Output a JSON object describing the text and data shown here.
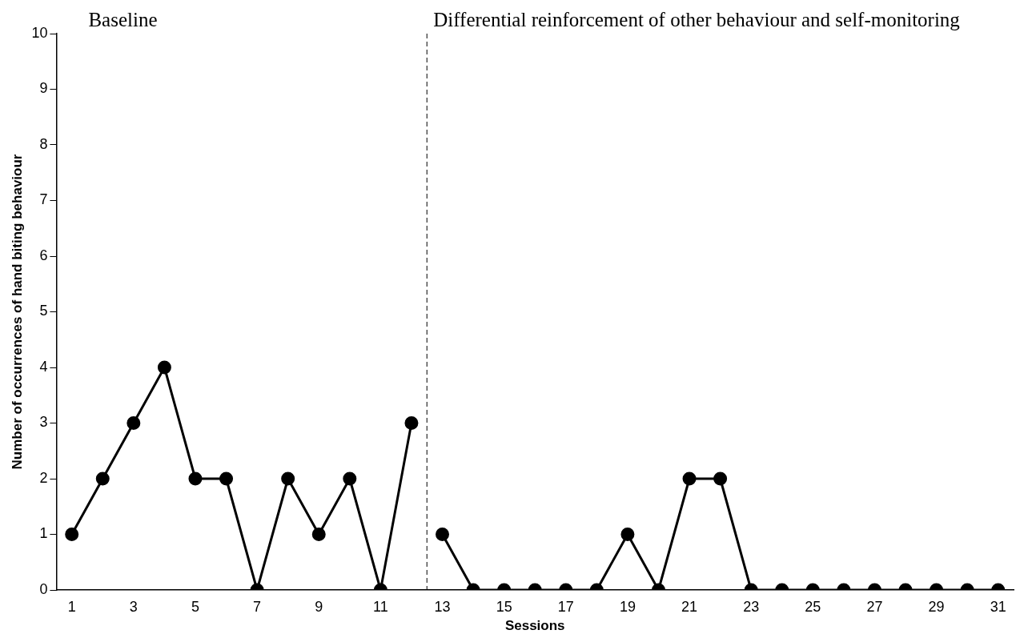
{
  "chart_data": {
    "type": "line",
    "xlabel": "Sessions",
    "ylabel": "Number of occurrences of hand biting behaviour",
    "series": [
      {
        "color": "#000000",
        "x": [
          1,
          2,
          3,
          4,
          5,
          6,
          7,
          8,
          9,
          10,
          11,
          12
        ],
        "values": [
          1,
          2,
          3,
          4,
          2,
          2,
          0,
          2,
          1,
          2,
          0,
          3
        ]
      },
      {
        "color": "#000000",
        "x": [
          13,
          14,
          15,
          16,
          17,
          18,
          19,
          20,
          21,
          22,
          23,
          24,
          25,
          26,
          27,
          28,
          29,
          30,
          31
        ],
        "values": [
          1,
          0,
          0,
          0,
          0,
          0,
          1,
          0,
          2,
          2,
          0,
          0,
          0,
          0,
          0,
          0,
          0,
          0,
          0
        ]
      }
    ],
    "xlim": [
      0.5,
      31.5
    ],
    "xticks": [
      1,
      3,
      5,
      7,
      9,
      11,
      13,
      15,
      17,
      19,
      21,
      23,
      25,
      27,
      29,
      31
    ],
    "ylim": [
      0,
      10
    ],
    "yticks": [
      0,
      1,
      2,
      3,
      4,
      5,
      6,
      7,
      8,
      9,
      10
    ],
    "ref_lines": [
      {
        "axis": "x",
        "value": 12.5,
        "color": "#000000",
        "line_style": "dashed"
      }
    ],
    "annotations": [
      "Baseline",
      "Differential reinforcement of other behaviour and self-monitoring"
    ],
    "grid": false,
    "legend": false,
    "marker": "circle",
    "line_style": "solid"
  }
}
